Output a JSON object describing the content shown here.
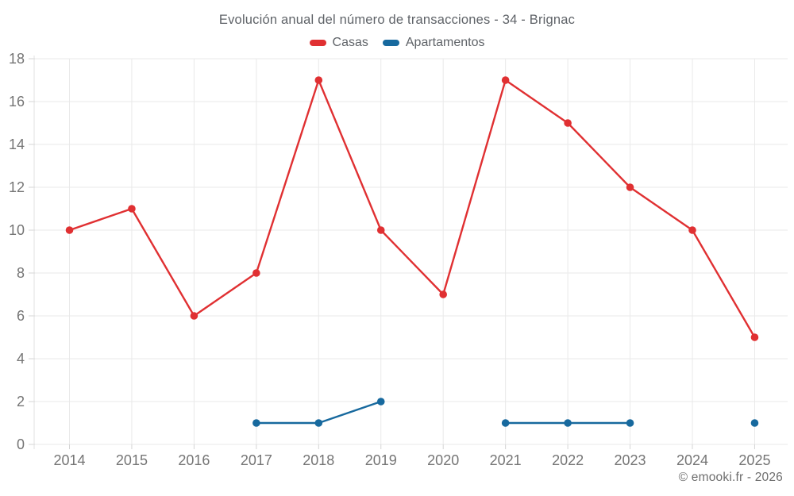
{
  "chart_data": {
    "type": "line",
    "title": "Evolución anual del número de transacciones - 34 - Brignac",
    "categories": [
      "2014",
      "2015",
      "2016",
      "2017",
      "2018",
      "2019",
      "2020",
      "2021",
      "2022",
      "2023",
      "2024",
      "2025"
    ],
    "series": [
      {
        "name": "Casas",
        "color": "#e03032",
        "values": [
          10,
          11,
          6,
          8,
          17,
          10,
          7,
          17,
          15,
          12,
          10,
          5
        ]
      },
      {
        "name": "Apartamentos",
        "color": "#17699e",
        "values": [
          null,
          null,
          null,
          1,
          1,
          2,
          null,
          1,
          1,
          1,
          null,
          1
        ]
      }
    ],
    "xlabel": "",
    "ylabel": "",
    "ylim": [
      0,
      18
    ],
    "ytick_step": 2,
    "grid": true,
    "legend_position": "top",
    "marker": "circle"
  },
  "footer": {
    "copyright": "© emooki.fr - 2026"
  }
}
